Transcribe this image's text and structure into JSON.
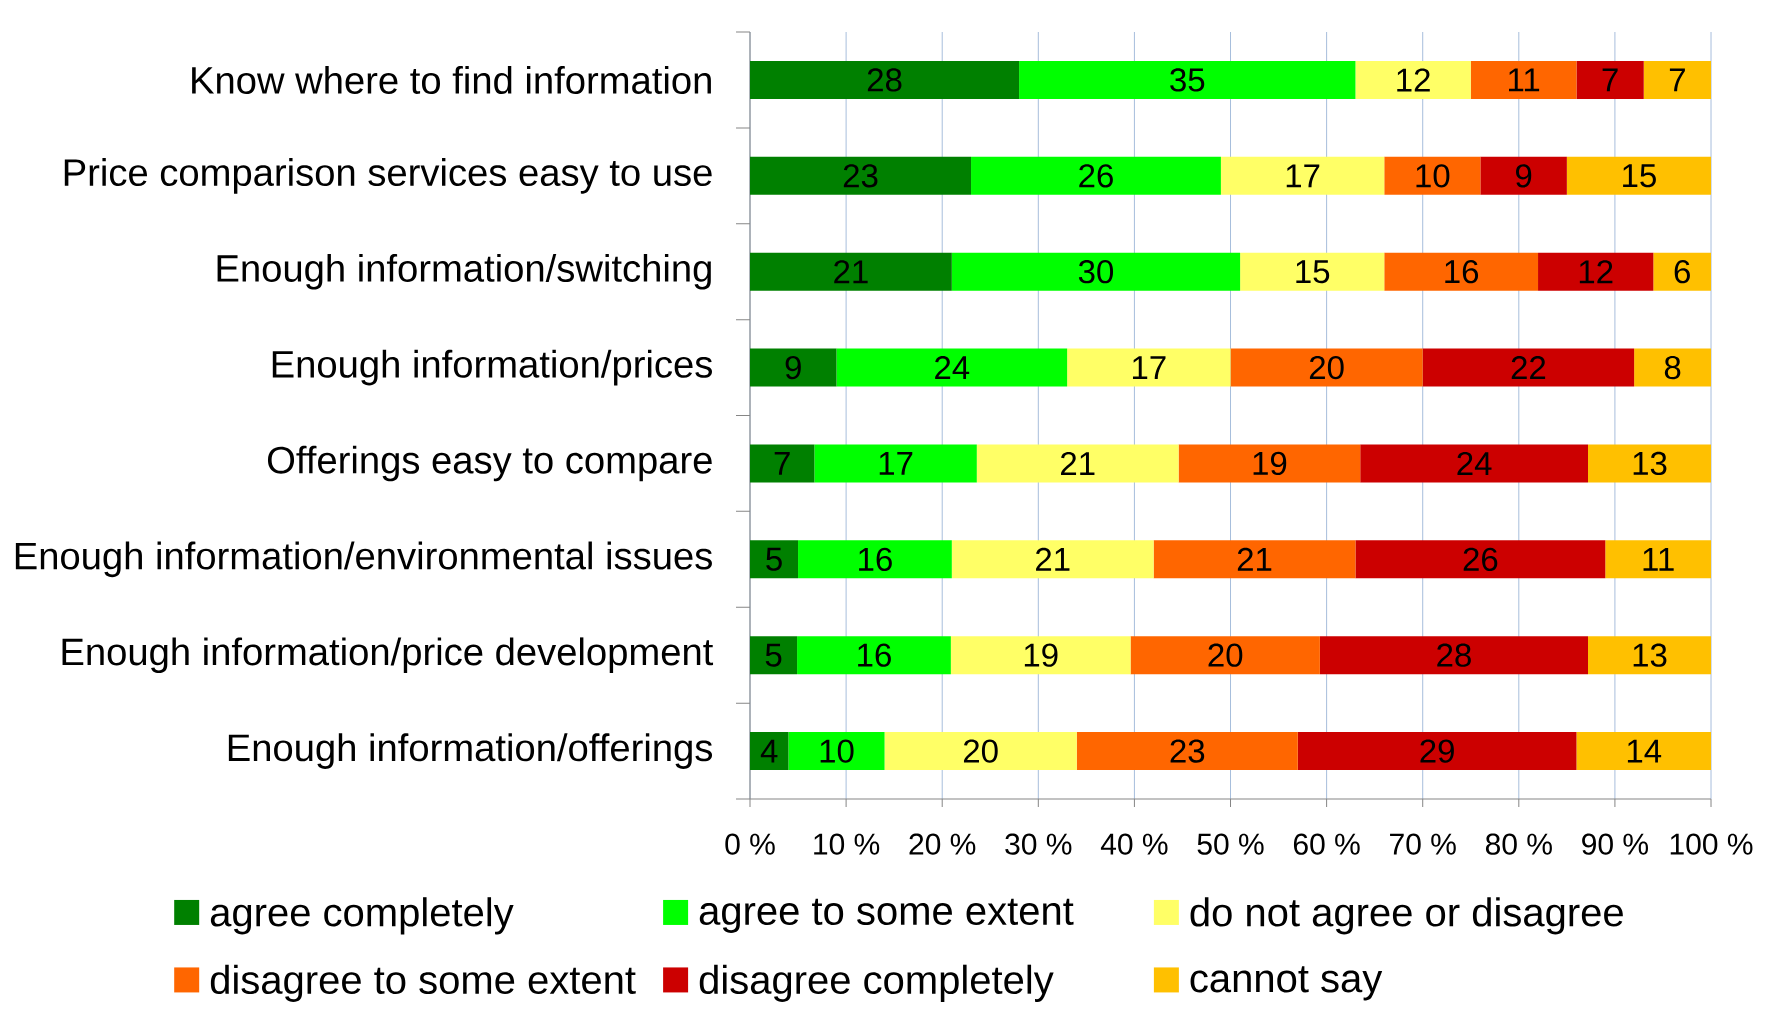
{
  "chart_data": {
    "type": "bar",
    "orientation": "horizontal",
    "stacked": true,
    "categories": [
      "Know where to find information",
      "Price comparison services easy to use",
      "Enough information/switching",
      "Enough information/prices",
      "Offerings easy to compare",
      "Enough information/environmental issues",
      "Enough information/price development",
      "Enough information/offerings"
    ],
    "series": [
      {
        "name": "agree completely",
        "color": "#008000",
        "values": [
          28,
          23,
          21,
          9,
          6.7,
          5,
          4.9,
          4
        ],
        "value_labels": [
          "28",
          "23",
          "21",
          "9",
          "7",
          "5",
          "5",
          "4"
        ]
      },
      {
        "name": "agree to some extent",
        "color": "#00ff00",
        "values": [
          35,
          26,
          30,
          24,
          16.9,
          16,
          16.0,
          10
        ],
        "value_labels": [
          "35",
          "26",
          "30",
          "24",
          "17",
          "16",
          "16",
          "10"
        ]
      },
      {
        "name": "do not agree or disagree",
        "color": "#ffff66",
        "values": [
          12,
          17,
          15,
          17,
          21.0,
          21,
          18.7,
          20
        ],
        "value_labels": [
          "12",
          "17",
          "15",
          "17",
          "21",
          "21",
          "19",
          "20"
        ]
      },
      {
        "name": "disagree to some extent",
        "color": "#ff6600",
        "values": [
          11,
          10,
          16,
          20,
          18.9,
          21,
          19.7,
          23
        ],
        "value_labels": [
          "11",
          "10",
          "16",
          "20",
          "19",
          "21",
          "20",
          "23"
        ]
      },
      {
        "name": "disagree completely",
        "color": "#cc0000",
        "values": [
          7,
          9,
          12,
          22,
          23.7,
          26,
          27.9,
          29
        ],
        "value_labels": [
          "7",
          "9",
          "12",
          "22",
          "24",
          "26",
          "28",
          "29"
        ]
      },
      {
        "name": "cannot say",
        "color": "#ffc000",
        "values": [
          7,
          15,
          6,
          8,
          12.8,
          11,
          12.8,
          14
        ],
        "value_labels": [
          "7",
          "15",
          "6",
          "8",
          "13",
          "11",
          "13",
          "14"
        ]
      }
    ],
    "xlim": [
      0,
      100
    ],
    "xticks": [
      {
        "value": 0,
        "label": "0 %"
      },
      {
        "value": 10,
        "label": "10 %"
      },
      {
        "value": 20,
        "label": "20 %"
      },
      {
        "value": 30,
        "label": "30 %"
      },
      {
        "value": 40,
        "label": "40 %"
      },
      {
        "value": 50,
        "label": "50 %"
      },
      {
        "value": 60,
        "label": "60 %"
      },
      {
        "value": 70,
        "label": "70 %"
      },
      {
        "value": 80,
        "label": "80 %"
      },
      {
        "value": 90,
        "label": "90 %"
      },
      {
        "value": 100,
        "label": "100 %"
      }
    ],
    "grid": "x",
    "legend": "bottom"
  }
}
